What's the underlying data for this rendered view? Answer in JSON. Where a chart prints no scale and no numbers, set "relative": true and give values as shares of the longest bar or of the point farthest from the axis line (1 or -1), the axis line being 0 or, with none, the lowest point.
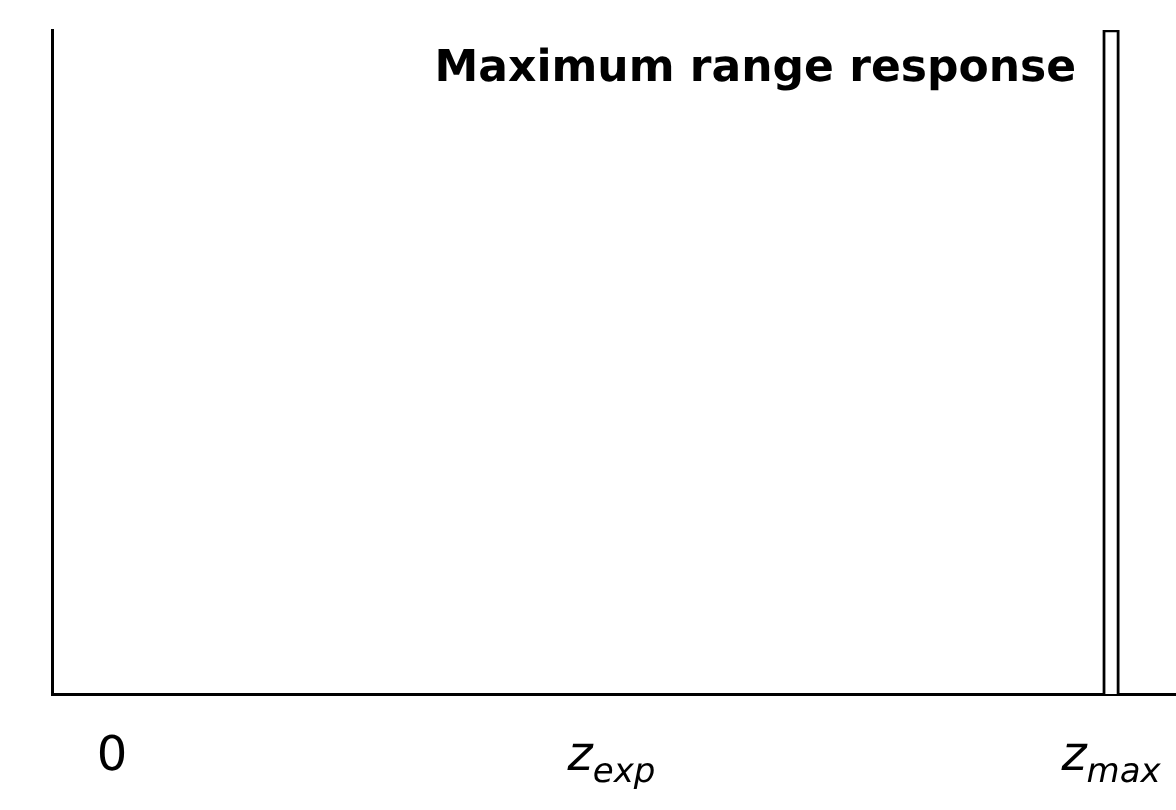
{
  "chart_data": {
    "type": "bar",
    "title": "Maximum range response",
    "relative": true,
    "categories": [
      "0",
      "z$_{exp}$",
      "z$_{max}$"
    ],
    "values": [
      0,
      0,
      1
    ],
    "color": "#ffffff",
    "grid": false,
    "legend": false
  }
}
